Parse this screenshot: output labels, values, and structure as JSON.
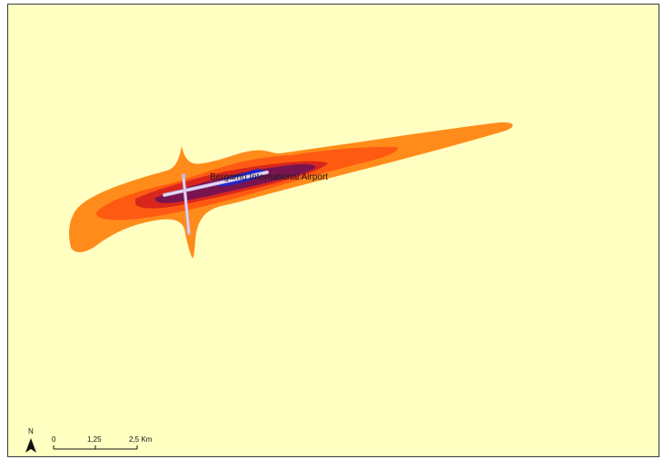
{
  "map": {
    "airport_label": "Bergamo International Airport",
    "north_letter": "N",
    "scale_labels": [
      "0",
      "1,25",
      "2,5 Km"
    ]
  },
  "colors": {
    "background": "#ffffc2",
    "zone_outer": "#ff8c1a",
    "zone_2": "#ff5a12",
    "zone_3": "#d9261c",
    "zone_4": "#7a1450",
    "zone_core": "#1f25c9",
    "runway": "#c8b6e6"
  }
}
